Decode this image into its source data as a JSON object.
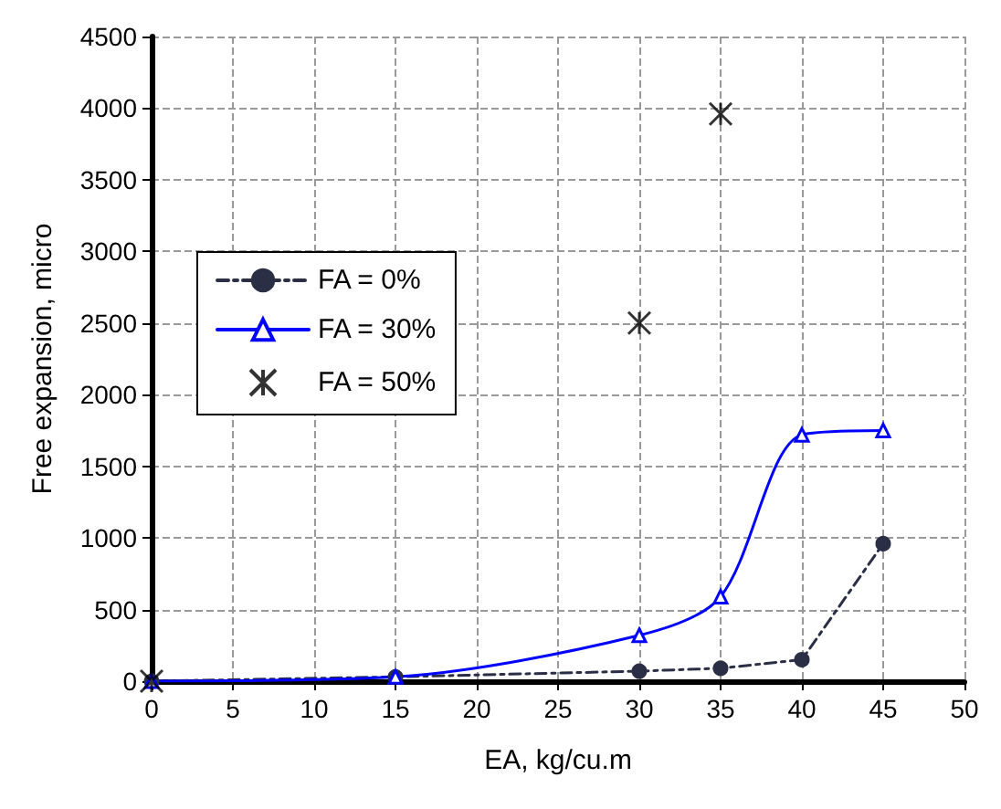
{
  "chart_data": {
    "type": "line",
    "xlabel": "EA, kg/cu.m",
    "ylabel": "Free expansion, micro",
    "xlim": [
      0,
      50
    ],
    "xticks": [
      0,
      5,
      10,
      15,
      20,
      25,
      30,
      35,
      40,
      45,
      50
    ],
    "ylim": [
      0,
      4500
    ],
    "yticks": [
      0,
      500,
      1000,
      1500,
      2000,
      2500,
      3000,
      3500,
      4000,
      4500
    ],
    "grid": true,
    "legend": "left",
    "series": [
      {
        "name": "FA = 0%",
        "color": "#2b2f45",
        "x": [
          0,
          15,
          30,
          35,
          40,
          45
        ],
        "values": [
          0,
          30,
          70,
          90,
          150,
          960
        ],
        "marker": "circle",
        "line_style": "dashed"
      },
      {
        "name": "FA = 30%",
        "color": "#0000ff",
        "x": [
          0,
          15,
          30,
          35,
          40,
          45
        ],
        "values": [
          0,
          30,
          320,
          590,
          1720,
          1750
        ],
        "marker": "triangle",
        "line_style": "solid"
      },
      {
        "name": "FA = 50%",
        "type": "scatter",
        "color": "#000000",
        "x": [
          0,
          30,
          35
        ],
        "values": [
          0,
          2500,
          3960
        ],
        "marker": "cross"
      }
    ]
  }
}
